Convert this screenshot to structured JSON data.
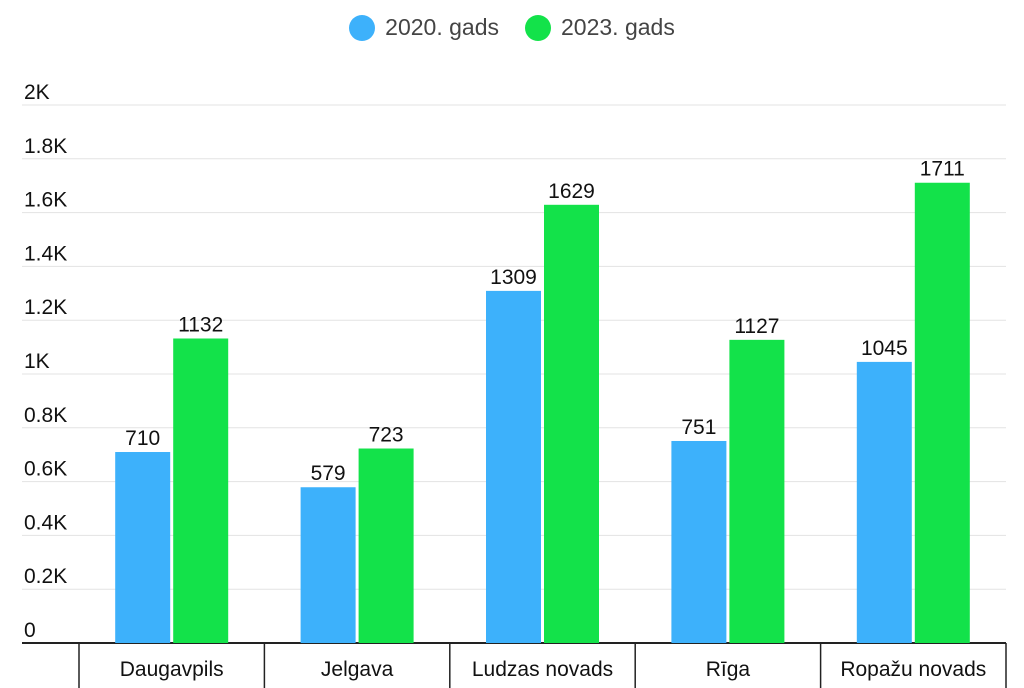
{
  "chart_data": {
    "type": "bar",
    "categories": [
      "Daugavpils",
      "Jelgava",
      "Ludzas novads",
      "Rīga",
      "Ropažu novads"
    ],
    "series": [
      {
        "name": "2020. gads",
        "color": "#3db1fb",
        "values": [
          710,
          579,
          1309,
          751,
          1045
        ]
      },
      {
        "name": "2023. gads",
        "color": "#13e24a",
        "values": [
          1132,
          723,
          1629,
          1127,
          1711
        ]
      }
    ],
    "yticks": [
      "0",
      "0.2K",
      "0.4K",
      "0.6K",
      "0.8K",
      "1K",
      "1.2K",
      "1.4K",
      "1.6K",
      "1.8K",
      "2K"
    ],
    "ylim": [
      0,
      2000
    ],
    "grid": true,
    "legend_position": "top-center",
    "data_labels": true
  }
}
